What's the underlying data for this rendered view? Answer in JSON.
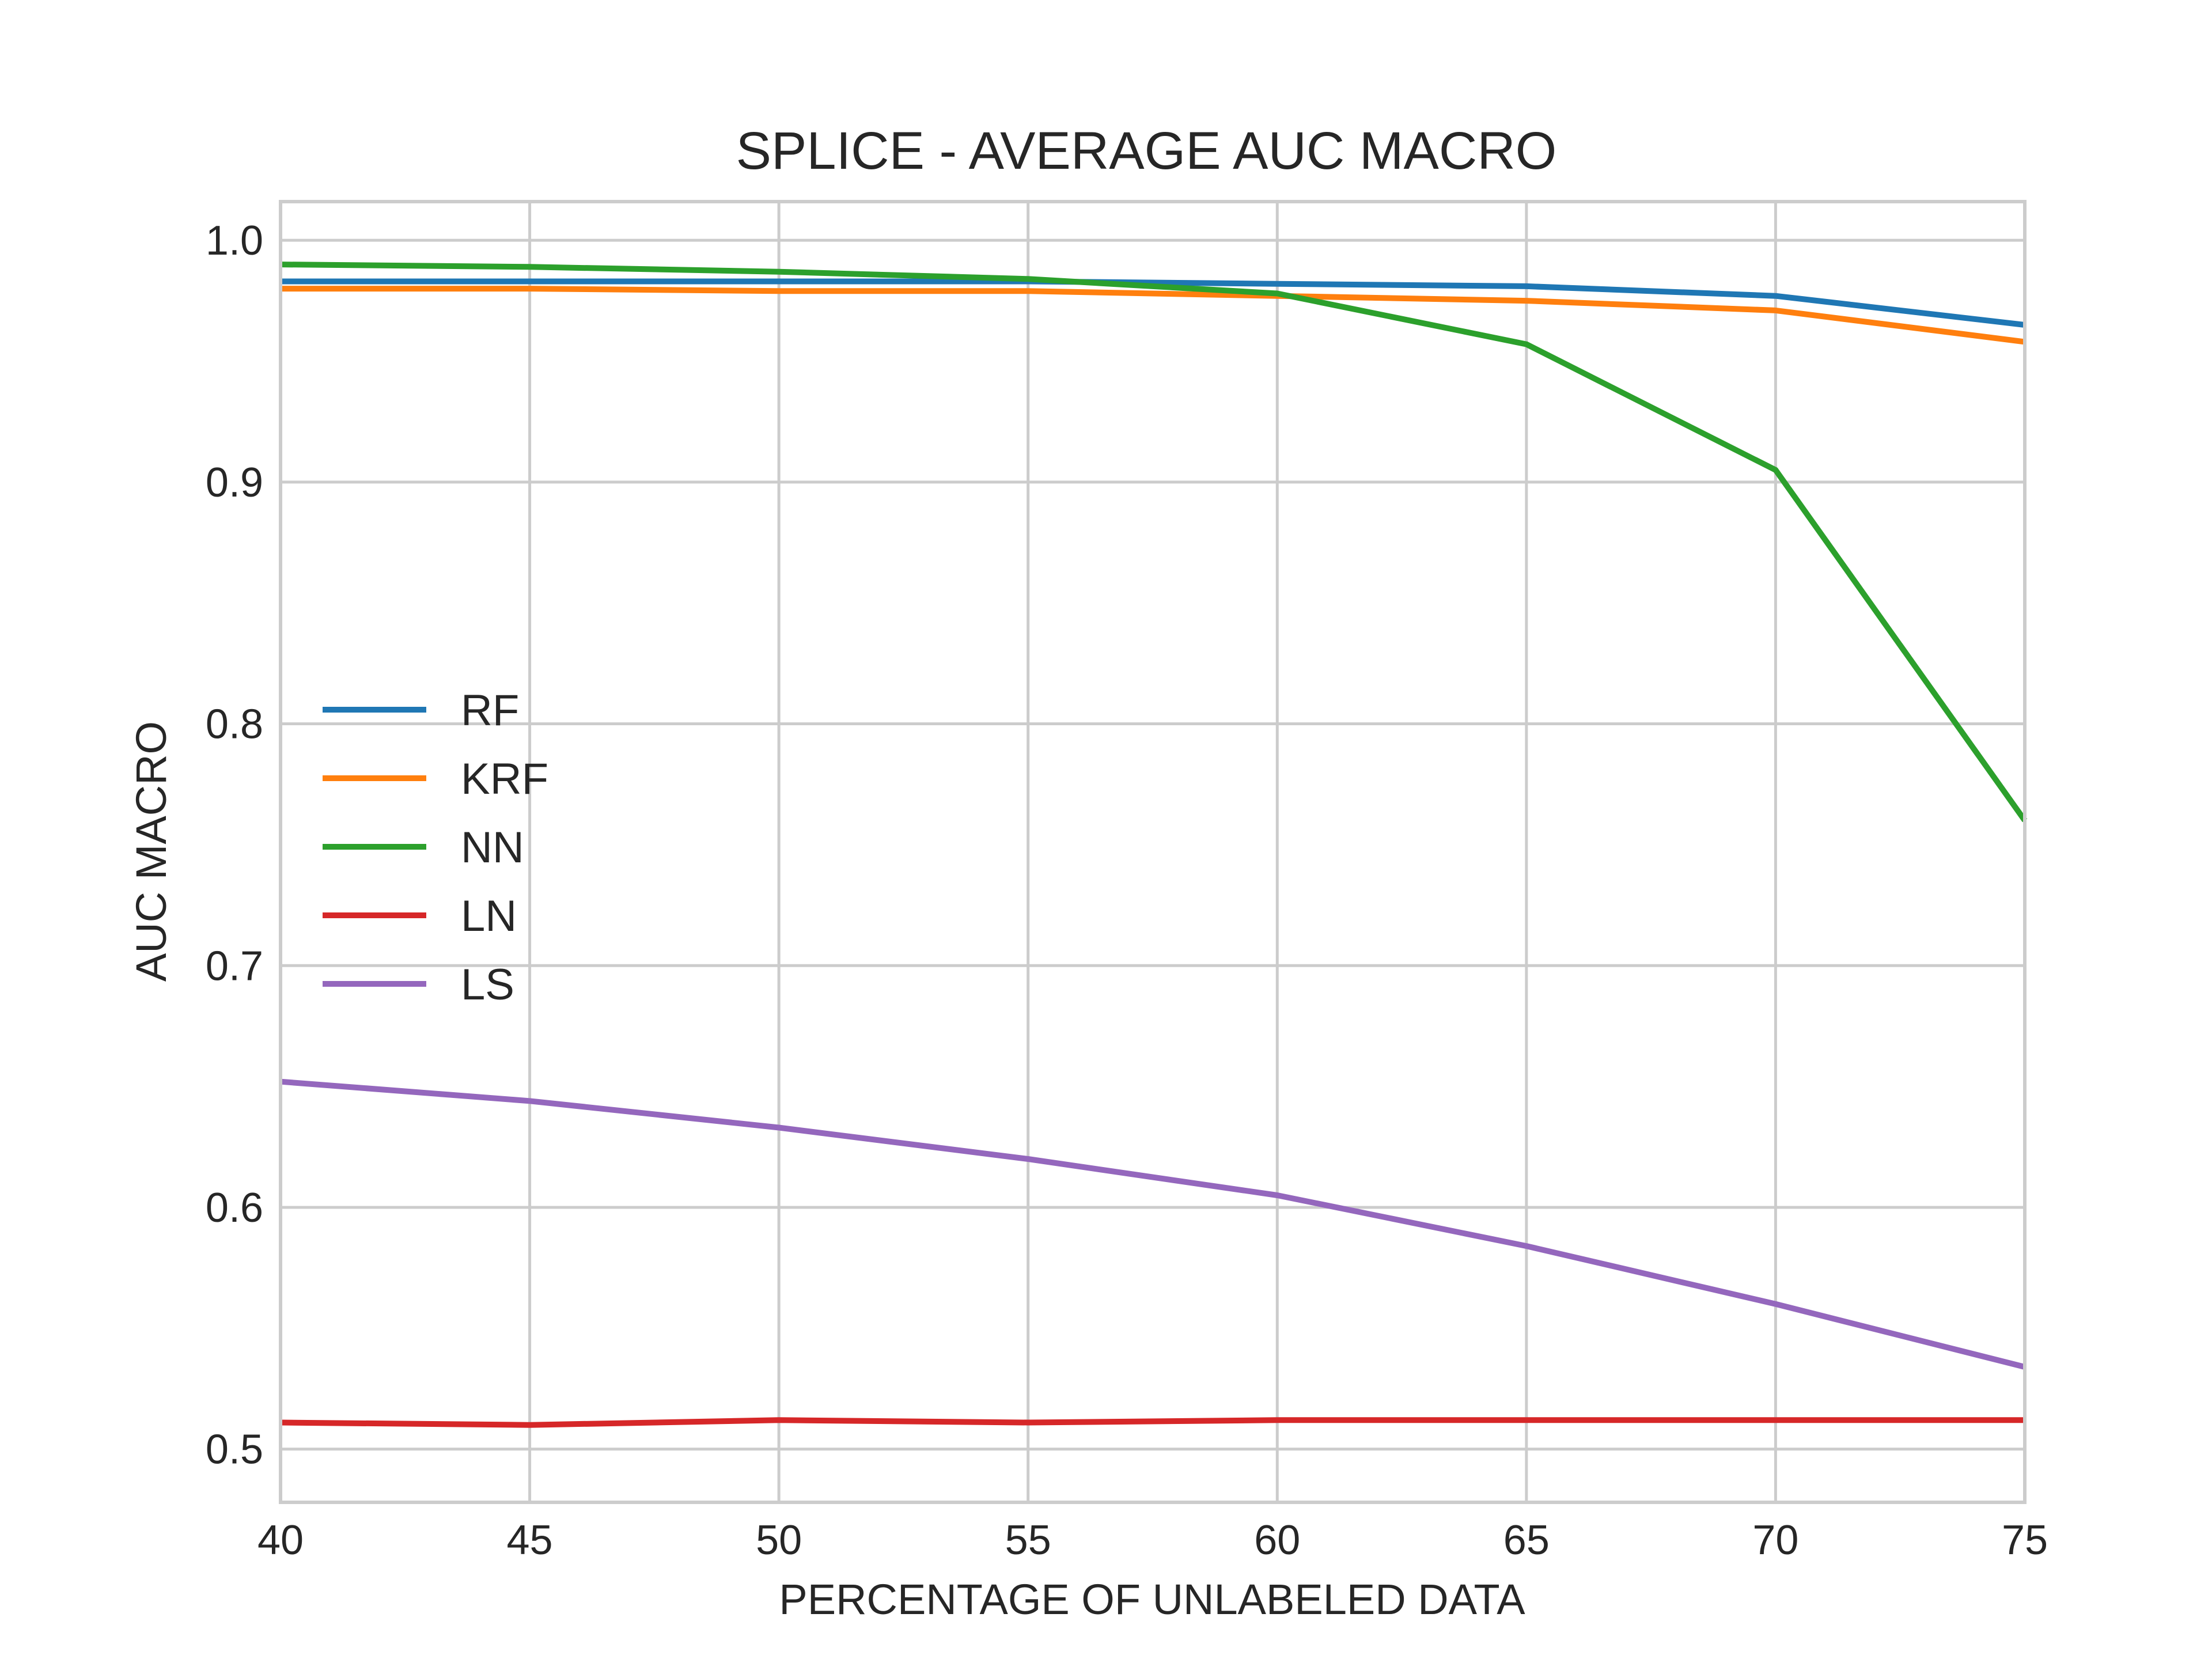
{
  "chart_data": {
    "type": "line",
    "title": "SPLICE - AVERAGE AUC MACRO",
    "xlabel": "PERCENTAGE OF UNLABELED DATA",
    "ylabel": "AUC MACRO",
    "x": [
      40,
      45,
      50,
      55,
      60,
      65,
      70,
      75
    ],
    "xlim": [
      40,
      75
    ],
    "ylim": [
      0.478,
      1.016
    ],
    "xticks": [
      "40",
      "45",
      "50",
      "55",
      "60",
      "65",
      "70",
      "75"
    ],
    "yticks": [
      "0.5",
      "0.6",
      "0.7",
      "0.8",
      "0.9",
      "1.0"
    ],
    "ytick_values": [
      0.5,
      0.6,
      0.7,
      0.8,
      0.9,
      1.0
    ],
    "grid": true,
    "legend_position": "center-left",
    "series": [
      {
        "name": "RF",
        "color": "#1f77b4",
        "values": [
          0.983,
          0.983,
          0.983,
          0.983,
          0.982,
          0.981,
          0.977,
          0.965
        ]
      },
      {
        "name": "KRF",
        "color": "#ff7f0e",
        "values": [
          0.98,
          0.98,
          0.979,
          0.979,
          0.977,
          0.975,
          0.971,
          0.958
        ]
      },
      {
        "name": "NN",
        "color": "#2ca02c",
        "values": [
          0.99,
          0.989,
          0.987,
          0.984,
          0.978,
          0.957,
          0.905,
          0.76
        ]
      },
      {
        "name": "LN",
        "color": "#d62728",
        "values": [
          0.511,
          0.51,
          0.512,
          0.511,
          0.512,
          0.512,
          0.512,
          0.512
        ]
      },
      {
        "name": "LS",
        "color": "#9467bd",
        "values": [
          0.652,
          0.644,
          0.633,
          0.62,
          0.605,
          0.584,
          0.56,
          0.534
        ]
      }
    ]
  }
}
